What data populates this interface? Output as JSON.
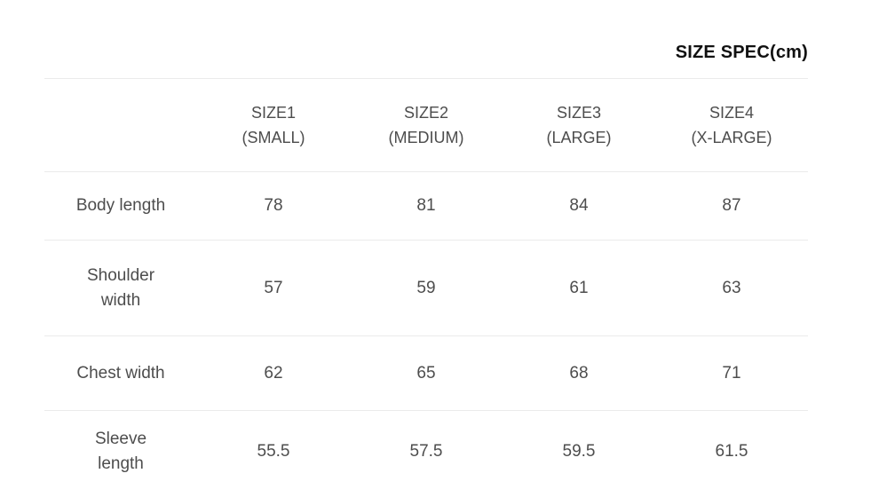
{
  "page": {
    "title": "SIZE SPEC(cm)"
  },
  "table": {
    "columns": [
      {
        "size": "SIZE1",
        "fit": "(SMALL)"
      },
      {
        "size": "SIZE2",
        "fit": "(MEDIUM)"
      },
      {
        "size": "SIZE3",
        "fit": "(LARGE)"
      },
      {
        "size": "SIZE4",
        "fit": "(X-LARGE)"
      }
    ],
    "rows": [
      {
        "label": "Body length",
        "values": [
          "78",
          "81",
          "84",
          "87"
        ]
      },
      {
        "label": "Shoulder\nwidth",
        "values": [
          "57",
          "59",
          "61",
          "63"
        ]
      },
      {
        "label": "Chest width",
        "values": [
          "62",
          "65",
          "68",
          "71"
        ]
      },
      {
        "label": "Sleeve\nlength",
        "values": [
          "55.5",
          "57.5",
          "59.5",
          "61.5"
        ]
      }
    ]
  },
  "colors": {
    "background": "#ffffff",
    "title_text": "#111111",
    "table_text": "#4d4d4d",
    "divider": "#ebebeb"
  },
  "chart_data": {
    "type": "table",
    "title": "SIZE SPEC(cm)",
    "unit": "cm",
    "columns": [
      "",
      "SIZE1 (SMALL)",
      "SIZE2 (MEDIUM)",
      "SIZE3 (LARGE)",
      "SIZE4 (X-LARGE)"
    ],
    "rows": [
      [
        "Body length",
        78,
        81,
        84,
        87
      ],
      [
        "Shoulder width",
        57,
        59,
        61,
        63
      ],
      [
        "Chest width",
        62,
        65,
        68,
        71
      ],
      [
        "Sleeve length",
        55.5,
        57.5,
        59.5,
        61.5
      ]
    ]
  }
}
